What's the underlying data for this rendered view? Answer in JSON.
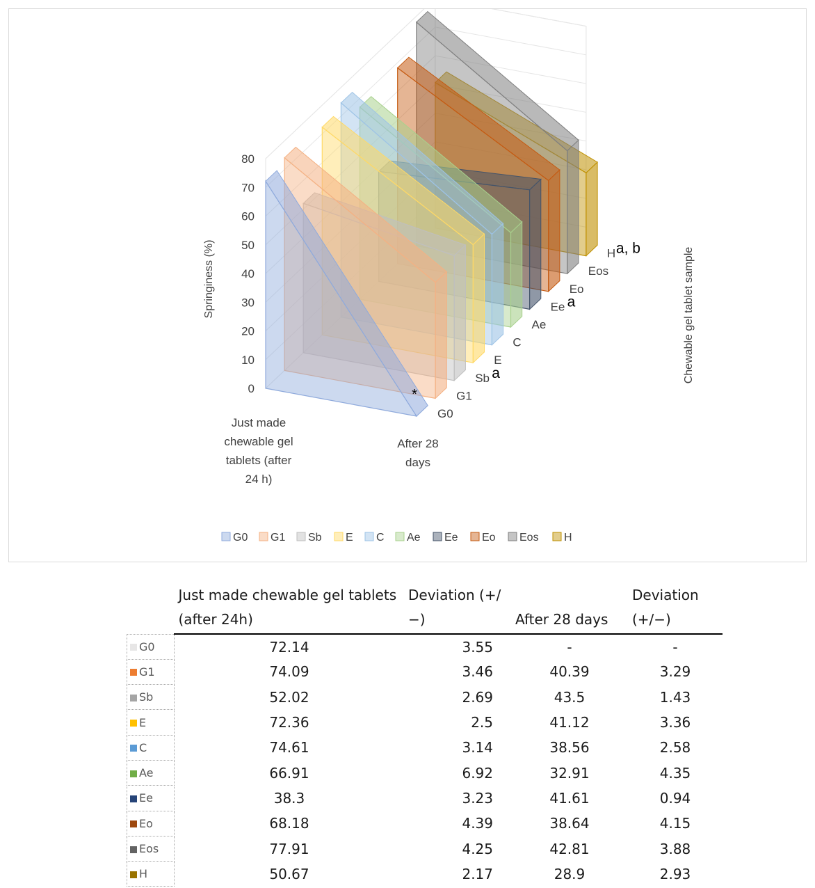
{
  "chart_data": {
    "type": "3d-area",
    "y_axis_title": "Springiness (%)",
    "depth_axis_title": "Chewable gel tablet sample",
    "categories": [
      "Just made chewable gel tablets (after 24 h)",
      "After 28 days"
    ],
    "category_label_lines": [
      [
        "Just made",
        "chewable gel",
        "tablets (after",
        "24 h)"
      ],
      [
        "After 28",
        "days"
      ]
    ],
    "ylim": [
      0,
      80
    ],
    "yticks": [
      "0",
      "10",
      "20",
      "30",
      "40",
      "50",
      "60",
      "70",
      "80"
    ],
    "series": [
      {
        "name": "G0",
        "values": [
          72.14,
          0
        ],
        "color": "#8faadc",
        "depth_label": "G0",
        "letter": ""
      },
      {
        "name": "G1",
        "values": [
          74.09,
          40.39
        ],
        "color": "#f4b183",
        "depth_label": "G1",
        "letter": ""
      },
      {
        "name": "Sb",
        "values": [
          52.02,
          43.5
        ],
        "color": "#bfbfbf",
        "depth_label": "Sb",
        "letter": "a"
      },
      {
        "name": "E",
        "values": [
          72.36,
          41.12
        ],
        "color": "#ffd966",
        "depth_label": "E",
        "letter": ""
      },
      {
        "name": "C",
        "values": [
          74.61,
          38.56
        ],
        "color": "#9dc3e6",
        "depth_label": "C",
        "letter": ""
      },
      {
        "name": "Ae",
        "values": [
          66.91,
          32.91
        ],
        "color": "#a9d18e",
        "depth_label": "Ae",
        "letter": ""
      },
      {
        "name": "Ee",
        "values": [
          38.3,
          41.61
        ],
        "color": "#44546a",
        "depth_label": "Ee",
        "letter": "a"
      },
      {
        "name": "Eo",
        "values": [
          68.18,
          38.64
        ],
        "color": "#c55a11",
        "depth_label": "Eo",
        "letter": ""
      },
      {
        "name": "Eos",
        "values": [
          77.91,
          42.81
        ],
        "color": "#7f7f7f",
        "depth_label": "Eos",
        "letter": ""
      },
      {
        "name": "H",
        "values": [
          50.67,
          28.9
        ],
        "color": "#bf9000",
        "depth_label": "H",
        "letter": "a, b"
      }
    ],
    "marker": "*"
  },
  "table": {
    "headers": [
      "Just made chewable gel tablets (after 24h)",
      "Deviation (+/−)",
      "After 28 days",
      "Deviation (+/−)"
    ],
    "rows": [
      {
        "label": "G0",
        "color": "#e7e6e6",
        "v1": "72.14",
        "d1": "3.55",
        "v2": "-",
        "d2": "-"
      },
      {
        "label": "G1",
        "color": "#ed7d31",
        "v1": "74.09",
        "d1": "3.46",
        "v2": "40.39",
        "d2": "3.29"
      },
      {
        "label": "Sb",
        "color": "#a5a5a5",
        "v1": "52.02",
        "d1": "2.69",
        "v2": "43.5",
        "d2": "1.43"
      },
      {
        "label": "E",
        "color": "#ffc000",
        "v1": "72.36",
        "d1": "2.5",
        "v2": "41.12",
        "d2": "3.36"
      },
      {
        "label": "C",
        "color": "#5b9bd5",
        "v1": "74.61",
        "d1": "3.14",
        "v2": "38.56",
        "d2": "2.58"
      },
      {
        "label": "Ae",
        "color": "#70ad47",
        "v1": "66.91",
        "d1": "6.92",
        "v2": "32.91",
        "d2": "4.35"
      },
      {
        "label": "Ee",
        "color": "#264478",
        "v1": "38.3",
        "d1": "3.23",
        "v2": "41.61",
        "d2": "0.94"
      },
      {
        "label": "Eo",
        "color": "#9e480e",
        "v1": "68.18",
        "d1": "4.39",
        "v2": "38.64",
        "d2": "4.15"
      },
      {
        "label": "Eos",
        "color": "#636363",
        "v1": "77.91",
        "d1": "4.25",
        "v2": "42.81",
        "d2": "3.88"
      },
      {
        "label": "H",
        "color": "#997300",
        "v1": "50.67",
        "d1": "2.17",
        "v2": "28.9",
        "d2": "2.93"
      }
    ]
  }
}
